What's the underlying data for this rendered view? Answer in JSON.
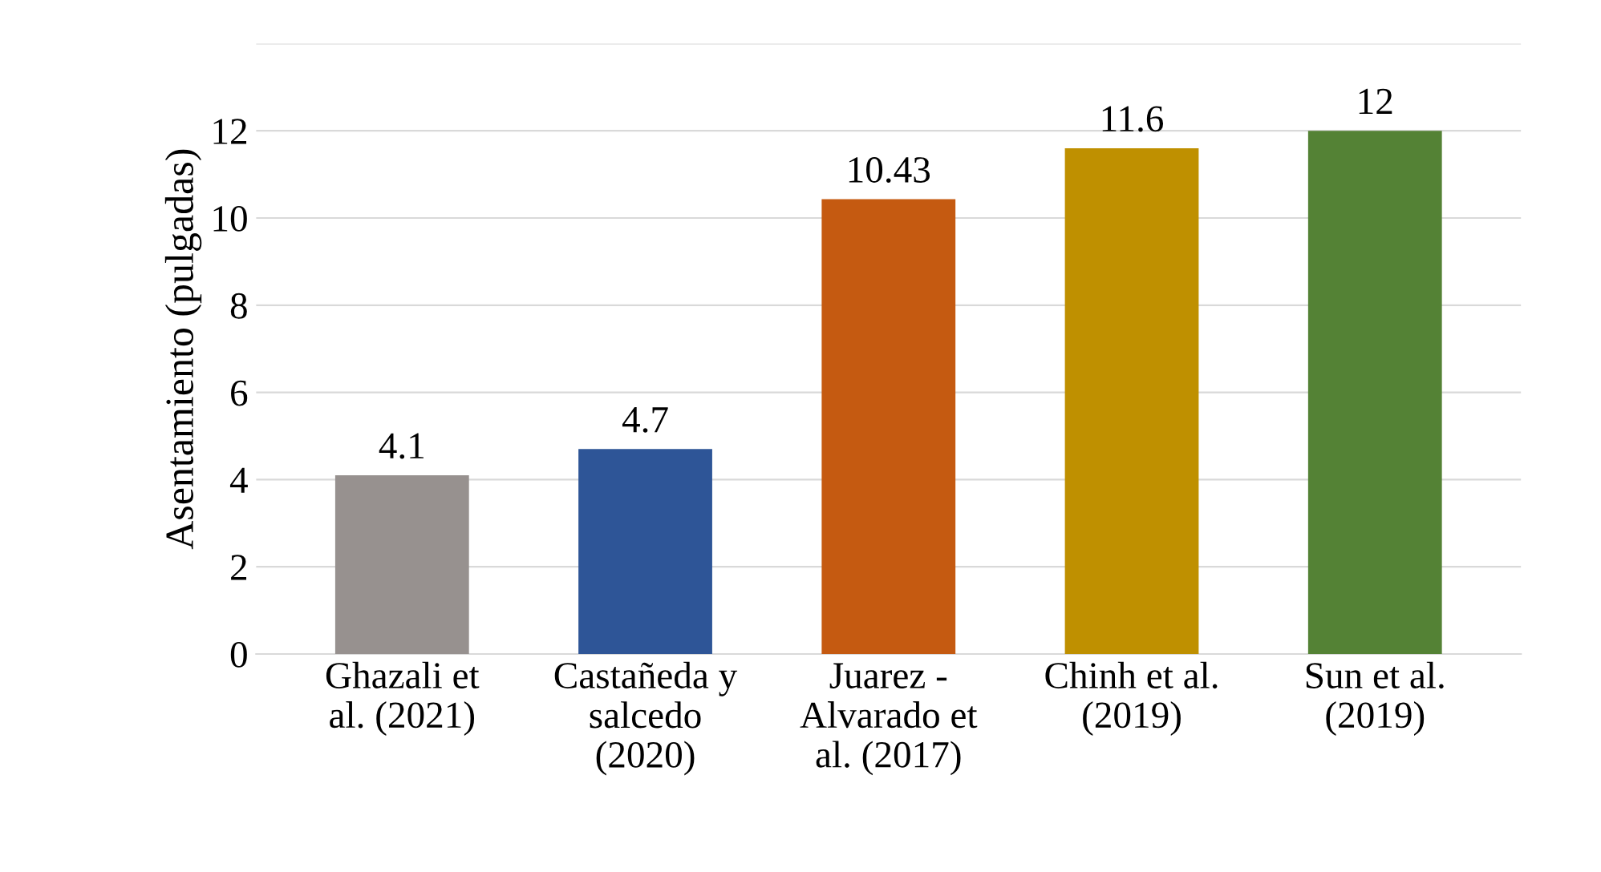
{
  "chart_data": {
    "type": "bar",
    "ylabel": "Asentamiento (pulgadas)",
    "categories": [
      "Ghazali et\nal. (2021)",
      "Castañeda y\nsalcedo\n(2020)",
      "Juarez -\nAlvarado et\nal. (2017)",
      "Chinh et al.\n(2019)",
      "Sun et al.\n(2019)"
    ],
    "values": [
      4.1,
      4.7,
      10.43,
      11.6,
      12
    ],
    "colors": [
      "#97918f",
      "#2e5597",
      "#c55a11",
      "#bf9000",
      "#548235"
    ],
    "ylim": [
      0,
      14
    ],
    "yticks": [
      0,
      2,
      4,
      6,
      8,
      10,
      12,
      {
        "value": 14,
        "label": null
      }
    ],
    "grid": "y",
    "data_labels": true
  }
}
